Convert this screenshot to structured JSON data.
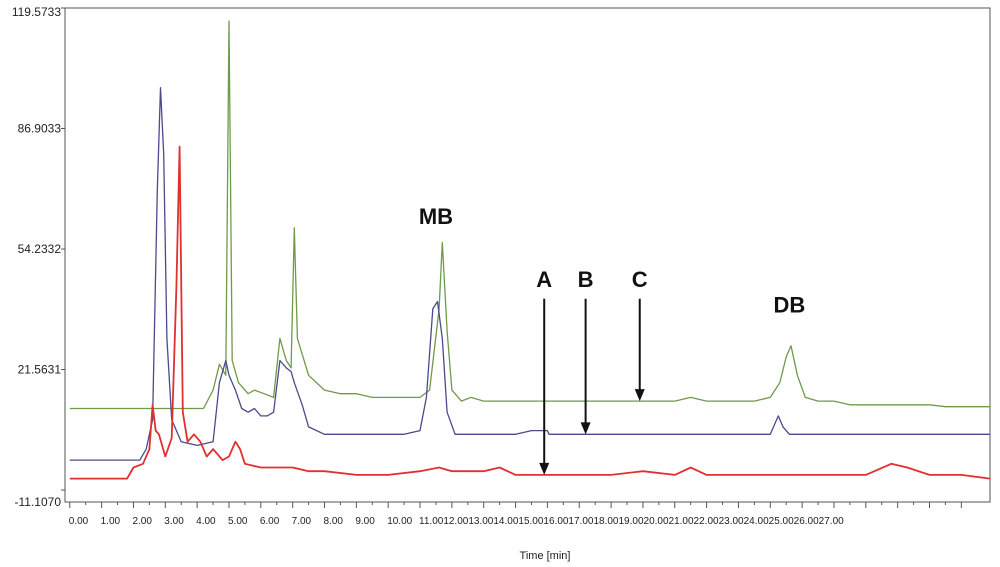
{
  "chart_data": {
    "type": "line",
    "title": "",
    "xlabel": "Time [min]",
    "ylabel": "",
    "xlim": [
      -0.15,
      28.9
    ],
    "ylim": [
      -11.907,
      119.5733
    ],
    "y_tick_labels": [
      "119.5733",
      "86.9033",
      "54.2332",
      "21.5631",
      "-11.1070"
    ],
    "y_tick_values": [
      119.5733,
      86.9033,
      54.2332,
      21.5631,
      -11.107
    ],
    "x_tick_labels": [
      "0.00",
      "1.00",
      "2.00",
      "3.00",
      "4.00",
      "5.00",
      "6.00",
      "7.00",
      "8.00",
      "9.00",
      "10.00",
      "11.0012.0013.0014.0015.0016.0017.0018.0019.0020.0021.0022.0023.0024.0025.0026.0027.00"
    ],
    "x_tick_values": [
      0,
      1,
      2,
      3,
      4,
      5,
      6,
      7,
      8,
      9,
      10,
      11
    ],
    "grid": false,
    "legend": "none",
    "series": [
      {
        "color": "#6f9a4a",
        "points": [
          [
            0,
            11
          ],
          [
            4.2,
            11
          ],
          [
            4.5,
            16
          ],
          [
            4.7,
            23
          ],
          [
            4.9,
            20
          ],
          [
            5.0,
            116
          ],
          [
            5.1,
            24
          ],
          [
            5.3,
            18
          ],
          [
            5.6,
            15
          ],
          [
            5.8,
            16
          ],
          [
            6.1,
            15
          ],
          [
            6.4,
            14
          ],
          [
            6.6,
            30
          ],
          [
            6.8,
            24
          ],
          [
            6.95,
            22
          ],
          [
            7.05,
            60
          ],
          [
            7.15,
            30
          ],
          [
            7.5,
            20
          ],
          [
            8.0,
            16
          ],
          [
            8.5,
            15
          ],
          [
            9.0,
            15
          ],
          [
            9.5,
            14
          ],
          [
            10.0,
            14
          ],
          [
            10.5,
            14
          ],
          [
            11.0,
            14
          ],
          [
            11.3,
            16
          ],
          [
            11.6,
            38
          ],
          [
            11.7,
            56
          ],
          [
            11.85,
            32
          ],
          [
            12.0,
            16
          ],
          [
            12.3,
            13
          ],
          [
            12.6,
            14
          ],
          [
            13.0,
            13
          ],
          [
            13.5,
            13
          ],
          [
            14.0,
            13
          ],
          [
            14.5,
            13
          ],
          [
            15.0,
            13
          ],
          [
            15.5,
            13
          ],
          [
            16.0,
            13
          ],
          [
            16.5,
            13
          ],
          [
            17.0,
            13
          ],
          [
            17.5,
            13
          ],
          [
            18.0,
            13
          ],
          [
            18.5,
            13
          ],
          [
            19.0,
            13
          ],
          [
            19.5,
            14
          ],
          [
            20.0,
            13
          ],
          [
            20.5,
            13
          ],
          [
            21.0,
            13
          ],
          [
            21.5,
            13
          ],
          [
            22.0,
            14
          ],
          [
            22.3,
            18
          ],
          [
            22.5,
            25
          ],
          [
            22.65,
            28
          ],
          [
            22.85,
            20
          ],
          [
            23.1,
            14
          ],
          [
            23.5,
            13
          ],
          [
            24.0,
            13
          ],
          [
            24.5,
            12
          ],
          [
            25.0,
            12
          ],
          [
            25.5,
            12
          ],
          [
            26.0,
            12
          ],
          [
            26.5,
            12
          ],
          [
            27.0,
            12
          ],
          [
            27.5,
            11.5
          ],
          [
            28.0,
            11.5
          ],
          [
            28.9,
            11.5
          ]
        ]
      },
      {
        "color": "#4a4a8c",
        "points": [
          [
            0,
            -3
          ],
          [
            2.2,
            -3
          ],
          [
            2.4,
            0
          ],
          [
            2.6,
            8
          ],
          [
            2.75,
            70
          ],
          [
            2.85,
            98
          ],
          [
            2.95,
            80
          ],
          [
            3.05,
            30
          ],
          [
            3.2,
            8
          ],
          [
            3.5,
            2
          ],
          [
            4.0,
            1
          ],
          [
            4.5,
            2
          ],
          [
            4.7,
            18
          ],
          [
            4.9,
            24
          ],
          [
            5.0,
            20
          ],
          [
            5.2,
            16
          ],
          [
            5.4,
            11
          ],
          [
            5.6,
            10
          ],
          [
            5.8,
            11
          ],
          [
            6.0,
            9
          ],
          [
            6.2,
            9
          ],
          [
            6.4,
            10
          ],
          [
            6.6,
            24
          ],
          [
            6.8,
            22
          ],
          [
            6.95,
            21
          ],
          [
            7.05,
            18
          ],
          [
            7.3,
            12
          ],
          [
            7.5,
            6
          ],
          [
            8.0,
            4
          ],
          [
            8.5,
            4
          ],
          [
            9.0,
            4
          ],
          [
            9.5,
            4
          ],
          [
            10.0,
            4
          ],
          [
            10.5,
            4
          ],
          [
            11.0,
            5
          ],
          [
            11.2,
            14
          ],
          [
            11.4,
            38
          ],
          [
            11.55,
            40
          ],
          [
            11.7,
            30
          ],
          [
            11.85,
            10
          ],
          [
            12.1,
            4
          ],
          [
            12.5,
            4
          ],
          [
            13.0,
            4
          ],
          [
            13.5,
            4
          ],
          [
            14.0,
            4
          ],
          [
            14.5,
            5
          ],
          [
            15.0,
            5
          ],
          [
            15.05,
            4
          ],
          [
            16.0,
            4
          ],
          [
            17.0,
            4
          ],
          [
            18.0,
            4
          ],
          [
            19.0,
            4
          ],
          [
            20.0,
            4
          ],
          [
            21.0,
            4
          ],
          [
            21.5,
            4
          ],
          [
            22.0,
            4
          ],
          [
            22.1,
            6
          ],
          [
            22.25,
            9
          ],
          [
            22.4,
            6
          ],
          [
            22.6,
            4
          ],
          [
            23.0,
            4
          ],
          [
            24.0,
            4
          ],
          [
            25.0,
            4
          ],
          [
            26.0,
            4
          ],
          [
            27.0,
            4
          ],
          [
            28.0,
            4
          ],
          [
            28.9,
            4
          ]
        ]
      },
      {
        "color": "#e03030",
        "points": [
          [
            0,
            -8
          ],
          [
            1.8,
            -8
          ],
          [
            2.0,
            -5
          ],
          [
            2.3,
            -4
          ],
          [
            2.5,
            0
          ],
          [
            2.6,
            12
          ],
          [
            2.7,
            5
          ],
          [
            2.8,
            4
          ],
          [
            3.0,
            -2
          ],
          [
            3.2,
            3
          ],
          [
            3.35,
            44
          ],
          [
            3.45,
            82
          ],
          [
            3.55,
            10
          ],
          [
            3.7,
            2
          ],
          [
            3.9,
            4
          ],
          [
            4.1,
            2
          ],
          [
            4.3,
            -2
          ],
          [
            4.5,
            0
          ],
          [
            4.8,
            -3
          ],
          [
            5.0,
            -2
          ],
          [
            5.2,
            2
          ],
          [
            5.35,
            0
          ],
          [
            5.5,
            -4
          ],
          [
            6.0,
            -5
          ],
          [
            6.5,
            -5
          ],
          [
            7.0,
            -5
          ],
          [
            7.5,
            -6
          ],
          [
            8.0,
            -6
          ],
          [
            9.0,
            -7
          ],
          [
            10.0,
            -7
          ],
          [
            11.0,
            -6
          ],
          [
            11.6,
            -5
          ],
          [
            12.0,
            -6
          ],
          [
            13.0,
            -6
          ],
          [
            13.5,
            -5
          ],
          [
            14.0,
            -7
          ],
          [
            14.5,
            -7
          ],
          [
            15.0,
            -7
          ],
          [
            16.0,
            -7
          ],
          [
            17.0,
            -7
          ],
          [
            18.0,
            -6
          ],
          [
            19.0,
            -7
          ],
          [
            19.5,
            -5
          ],
          [
            20.0,
            -7
          ],
          [
            21.0,
            -7
          ],
          [
            22.0,
            -7
          ],
          [
            23.0,
            -7
          ],
          [
            24.0,
            -7
          ],
          [
            25.0,
            -7
          ],
          [
            25.8,
            -4
          ],
          [
            26.3,
            -5
          ],
          [
            27.0,
            -7
          ],
          [
            28.0,
            -7
          ],
          [
            28.9,
            -8
          ]
        ]
      }
    ],
    "annotations": [
      {
        "label": "MB",
        "x": 11.5,
        "y": 61
      },
      {
        "label": "A",
        "x": 14.9,
        "y": 44,
        "arrow_to": -7
      },
      {
        "label": "B",
        "x": 16.2,
        "y": 44,
        "arrow_to": 4
      },
      {
        "label": "C",
        "x": 17.9,
        "y": 44,
        "arrow_to": 13
      },
      {
        "label": "DB",
        "x": 22.6,
        "y": 37
      }
    ]
  }
}
